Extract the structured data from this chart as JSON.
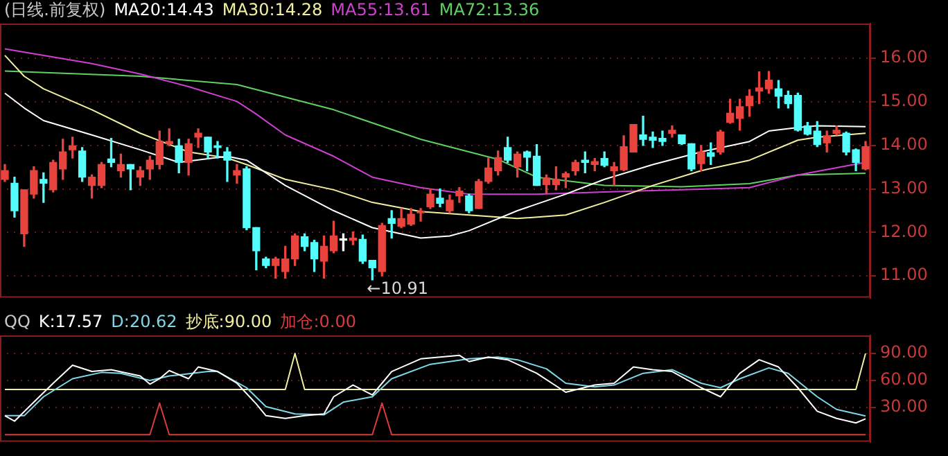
{
  "chart_data": [
    {
      "type": "candlestick",
      "title": "(日线.前复权)",
      "grid": "y",
      "tick_labels": "y",
      "categories": [
        null,
        null,
        null,
        null,
        null,
        null,
        null,
        null,
        null,
        null,
        null,
        null,
        null,
        null,
        null,
        null,
        null,
        null,
        null,
        null,
        null,
        null,
        null,
        null,
        null,
        null,
        null,
        null,
        null,
        null,
        null,
        null,
        null,
        null,
        null,
        null,
        null,
        null,
        null,
        null,
        null,
        null,
        null,
        null,
        null,
        null,
        null,
        null,
        null,
        null,
        null,
        null,
        null,
        null,
        null,
        null,
        null,
        null,
        null,
        null,
        null,
        null,
        null,
        null,
        null,
        null,
        null,
        null,
        null,
        null,
        null,
        null,
        null,
        null,
        null,
        null,
        null,
        null,
        null,
        null,
        null,
        null,
        null,
        null,
        null,
        null,
        null,
        null,
        null,
        null
      ],
      "ohlc": [
        [
          13.22,
          13.56,
          13.17,
          13.42
        ],
        [
          13.13,
          13.27,
          12.35,
          12.5
        ],
        [
          11.97,
          12.98,
          11.68,
          12.98
        ],
        [
          12.88,
          13.51,
          12.79,
          13.42
        ],
        [
          13.22,
          13.37,
          12.69,
          13.13
        ],
        [
          12.98,
          13.66,
          12.93,
          13.61
        ],
        [
          13.46,
          14.14,
          13.22,
          13.85
        ],
        [
          13.9,
          14.19,
          13.71,
          13.99
        ],
        [
          13.87,
          13.95,
          13.17,
          13.27
        ],
        [
          13.08,
          13.32,
          12.79,
          13.27
        ],
        [
          13.08,
          13.61,
          13.03,
          13.56
        ],
        [
          13.69,
          14.16,
          13.51,
          13.61
        ],
        [
          13.42,
          13.8,
          13.27,
          13.56
        ],
        [
          13.56,
          13.56,
          12.98,
          13.46
        ],
        [
          13.27,
          13.51,
          13.08,
          13.42
        ],
        [
          13.46,
          13.75,
          13.22,
          13.66
        ],
        [
          13.56,
          14.33,
          13.46,
          14.09
        ],
        [
          14.04,
          14.38,
          13.99,
          14.09
        ],
        [
          13.99,
          14.14,
          13.37,
          13.61
        ],
        [
          13.61,
          14.14,
          13.32,
          14.04
        ],
        [
          14.19,
          14.38,
          13.95,
          14.28
        ],
        [
          14.19,
          14.19,
          13.71,
          13.85
        ],
        [
          13.99,
          14.09,
          13.71,
          13.95
        ],
        [
          13.85,
          13.95,
          13.17,
          13.66
        ],
        [
          13.32,
          13.56,
          13.13,
          13.42
        ],
        [
          13.46,
          13.51,
          12.06,
          12.11
        ],
        [
          12.11,
          12.11,
          11.14,
          11.58
        ],
        [
          11.39,
          11.43,
          11.19,
          11.24
        ],
        [
          11.24,
          11.43,
          10.95,
          11.39
        ],
        [
          11.1,
          11.68,
          10.95,
          11.39
        ],
        [
          11.39,
          11.97,
          11.24,
          11.92
        ],
        [
          11.9,
          11.97,
          11.58,
          11.68
        ],
        [
          11.77,
          11.82,
          11.1,
          11.39
        ],
        [
          11.34,
          11.92,
          10.95,
          11.68
        ],
        [
          11.58,
          12.26,
          11.53,
          11.92
        ],
        [
          11.82,
          11.97,
          11.58,
          11.82
        ],
        [
          11.82,
          12.01,
          11.72,
          11.87
        ],
        [
          11.84,
          11.94,
          11.29,
          11.34
        ],
        [
          11.36,
          11.36,
          10.91,
          11.19
        ],
        [
          11.1,
          12.21,
          11.0,
          12.16
        ],
        [
          12.32,
          12.5,
          11.87,
          12.21
        ],
        [
          12.14,
          12.55,
          12.11,
          12.32
        ],
        [
          12.19,
          12.55,
          12.16,
          12.42
        ],
        [
          12.45,
          12.55,
          12.26,
          12.48
        ],
        [
          12.59,
          13.0,
          12.55,
          12.88
        ],
        [
          12.79,
          13.0,
          12.59,
          12.67
        ],
        [
          12.5,
          12.86,
          12.45,
          12.74
        ],
        [
          12.84,
          13.03,
          12.69,
          12.95
        ],
        [
          12.84,
          12.88,
          12.45,
          12.5
        ],
        [
          12.55,
          13.22,
          12.55,
          13.17
        ],
        [
          13.17,
          13.71,
          13.13,
          13.48
        ],
        [
          13.42,
          13.87,
          13.32,
          13.72
        ],
        [
          13.95,
          14.19,
          13.61,
          13.66
        ],
        [
          13.51,
          13.85,
          13.27,
          13.8
        ],
        [
          13.85,
          13.87,
          13.42,
          13.73
        ],
        [
          13.75,
          14.02,
          13.08,
          13.08
        ],
        [
          13.1,
          13.32,
          12.91,
          13.25
        ],
        [
          13.1,
          13.51,
          12.98,
          13.22
        ],
        [
          13.27,
          13.39,
          13.03,
          13.35
        ],
        [
          13.42,
          13.66,
          13.32,
          13.61
        ],
        [
          13.66,
          13.85,
          13.37,
          13.61
        ],
        [
          13.56,
          13.7,
          13.42,
          13.63
        ],
        [
          13.7,
          13.85,
          13.51,
          13.54
        ],
        [
          13.42,
          13.61,
          13.08,
          13.51
        ],
        [
          13.44,
          14.22,
          13.42,
          13.97
        ],
        [
          13.85,
          14.48,
          13.85,
          14.48
        ],
        [
          14.24,
          14.67,
          14.0,
          14.14
        ],
        [
          14.19,
          14.31,
          13.95,
          14.12
        ],
        [
          14.16,
          14.33,
          14.0,
          14.09
        ],
        [
          14.28,
          14.45,
          14.19,
          14.35
        ],
        [
          14.24,
          14.24,
          14.02,
          14.04
        ],
        [
          14.04,
          14.04,
          13.42,
          13.46
        ],
        [
          13.58,
          14.0,
          13.42,
          13.85
        ],
        [
          13.83,
          14.06,
          13.56,
          13.75
        ],
        [
          13.85,
          14.35,
          13.8,
          14.31
        ],
        [
          14.53,
          15.06,
          14.51,
          14.74
        ],
        [
          14.62,
          15.06,
          14.35,
          14.89
        ],
        [
          14.91,
          15.28,
          14.67,
          15.13
        ],
        [
          15.25,
          15.69,
          14.96,
          15.32
        ],
        [
          15.3,
          15.7,
          15.2,
          15.5
        ],
        [
          15.3,
          15.49,
          14.86,
          15.13
        ],
        [
          15.15,
          15.25,
          14.86,
          14.96
        ],
        [
          15.15,
          15.2,
          14.33,
          14.35
        ],
        [
          14.45,
          14.53,
          14.24,
          14.26
        ],
        [
          14.33,
          14.55,
          13.97,
          14.02
        ],
        [
          14.06,
          14.33,
          13.85,
          14.22
        ],
        [
          14.28,
          14.45,
          14.24,
          14.35
        ],
        [
          14.28,
          14.31,
          13.78,
          13.85
        ],
        [
          13.9,
          13.92,
          13.42,
          13.61
        ],
        [
          13.46,
          14.09,
          13.44,
          13.97
        ]
      ],
      "colors": [
        "#e8433c",
        "#54fcfc",
        "#e8433c",
        "#e8433c",
        "#54fcfc",
        "#e8433c",
        "#e8433c",
        "#e8433c",
        "#54fcfc",
        "#e8433c",
        "#e8433c",
        "#54fcfc",
        "#e8433c",
        "#54fcfc",
        "#e8433c",
        "#e8433c",
        "#e8433c",
        "#e8433c",
        "#54fcfc",
        "#e8433c",
        "#e8433c",
        "#54fcfc",
        "#54fcfc",
        "#54fcfc",
        "#e8433c",
        "#54fcfc",
        "#54fcfc",
        "#54fcfc",
        "#e8433c",
        "#e8433c",
        "#e8433c",
        "#54fcfc",
        "#54fcfc",
        "#e8433c",
        "#e8433c",
        "#ffffff",
        "#e8433c",
        "#54fcfc",
        "#54fcfc",
        "#e8433c",
        "#54fcfc",
        "#e8433c",
        "#e8433c",
        "#e8433c",
        "#e8433c",
        "#54fcfc",
        "#e8433c",
        "#e8433c",
        "#54fcfc",
        "#e8433c",
        "#e8433c",
        "#e8433c",
        "#54fcfc",
        "#e8433c",
        "#54fcfc",
        "#54fcfc",
        "#e8433c",
        "#e8433c",
        "#e8433c",
        "#e8433c",
        "#54fcfc",
        "#e8433c",
        "#54fcfc",
        "#e8433c",
        "#e8433c",
        "#e8433c",
        "#54fcfc",
        "#54fcfc",
        "#54fcfc",
        "#e8433c",
        "#54fcfc",
        "#54fcfc",
        "#e8433c",
        "#54fcfc",
        "#e8433c",
        "#e8433c",
        "#e8433c",
        "#e8433c",
        "#e8433c",
        "#e8433c",
        "#54fcfc",
        "#54fcfc",
        "#54fcfc",
        "#54fcfc",
        "#54fcfc",
        "#e8433c",
        "#e8433c",
        "#54fcfc",
        "#54fcfc",
        "#e8433c"
      ],
      "series": [
        {
          "type": "line",
          "name": "MA20:14.43",
          "color": "#ffffff",
          "values": [
            15.2,
            null,
            14.86,
            null,
            14.57,
            null,
            null,
            null,
            null,
            14.24,
            null,
            null,
            null,
            null,
            13.9,
            null,
            null,
            null,
            13.61,
            null,
            null,
            null,
            null,
            13.75,
            null,
            13.66,
            null,
            null,
            null,
            13.08,
            null,
            null,
            null,
            null,
            12.5,
            null,
            null,
            null,
            12.11,
            null,
            null,
            null,
            null,
            11.87,
            null,
            null,
            11.92,
            null,
            12.04,
            null,
            null,
            null,
            null,
            12.5,
            null,
            null,
            null,
            null,
            12.88,
            null,
            null,
            null,
            13.22,
            null,
            null,
            null,
            null,
            13.56,
            null,
            null,
            null,
            null,
            13.85,
            null,
            null,
            null,
            null,
            14.09,
            null,
            14.33,
            null,
            null,
            14.41,
            null,
            14.45,
            null,
            null,
            null,
            null,
            14.43
          ]
        },
        {
          "type": "line",
          "name": "MA30:14.28",
          "color": "#f0f0a0",
          "values": [
            16.07,
            null,
            15.59,
            null,
            15.3,
            null,
            null,
            null,
            null,
            14.82,
            null,
            null,
            null,
            null,
            14.28,
            null,
            null,
            null,
            null,
            13.85,
            null,
            null,
            null,
            13.71,
            null,
            13.56,
            null,
            null,
            null,
            13.22,
            null,
            null,
            null,
            null,
            12.98,
            null,
            null,
            null,
            12.69,
            null,
            null,
            null,
            null,
            12.48,
            null,
            null,
            null,
            null,
            12.4,
            null,
            null,
            null,
            null,
            12.32,
            null,
            null,
            null,
            null,
            12.4,
            null,
            null,
            null,
            12.69,
            null,
            null,
            null,
            null,
            13.08,
            null,
            null,
            null,
            null,
            13.42,
            null,
            null,
            null,
            null,
            13.66,
            null,
            null,
            null,
            null,
            14.12,
            null,
            14.19,
            null,
            null,
            null,
            null,
            14.28
          ]
        },
        {
          "type": "line",
          "name": "MA55:13.61",
          "color": "#d040d0",
          "values": [
            16.22,
            null,
            null,
            null,
            null,
            null,
            null,
            null,
            null,
            15.88,
            null,
            null,
            null,
            null,
            15.64,
            null,
            null,
            null,
            null,
            15.35,
            null,
            null,
            null,
            null,
            15.01,
            null,
            14.72,
            null,
            null,
            14.24,
            null,
            null,
            null,
            null,
            13.75,
            null,
            null,
            null,
            13.27,
            null,
            null,
            null,
            null,
            13.03,
            null,
            null,
            null,
            null,
            12.88,
            null,
            null,
            null,
            null,
            null,
            null,
            12.88,
            null,
            null,
            null,
            null,
            null,
            null,
            12.93,
            null,
            null,
            null,
            null,
            null,
            null,
            null,
            12.98,
            null,
            null,
            null,
            null,
            null,
            null,
            13.03,
            null,
            null,
            null,
            null,
            13.32,
            null,
            null,
            null,
            null,
            null,
            null,
            13.61
          ]
        },
        {
          "type": "line",
          "name": "MA72:13.36",
          "color": "#60d060",
          "values": [
            15.71,
            null,
            null,
            null,
            null,
            null,
            null,
            null,
            null,
            null,
            null,
            null,
            null,
            null,
            15.59,
            null,
            null,
            null,
            null,
            null,
            null,
            null,
            null,
            null,
            15.4,
            null,
            null,
            null,
            null,
            null,
            null,
            null,
            null,
            null,
            14.82,
            null,
            null,
            null,
            null,
            null,
            null,
            null,
            null,
            14.14,
            null,
            null,
            null,
            null,
            null,
            null,
            null,
            13.68,
            null,
            null,
            null,
            13.27,
            null,
            null,
            null,
            null,
            null,
            null,
            13.08,
            null,
            null,
            null,
            null,
            null,
            null,
            null,
            13.05,
            null,
            null,
            null,
            null,
            null,
            null,
            13.12,
            null,
            null,
            null,
            null,
            13.32,
            null,
            null,
            null,
            null,
            null,
            null,
            13.36
          ]
        }
      ],
      "ylim": [
        10.5,
        16.8
      ],
      "yticks": [
        {
          "value": 11,
          "label": "11.00"
        },
        {
          "value": 12,
          "label": "12.00"
        },
        {
          "value": 13,
          "label": "13.00"
        },
        {
          "value": 14,
          "label": "14.00"
        },
        {
          "value": 15,
          "label": "15.00"
        },
        {
          "value": 16,
          "label": "16.00"
        }
      ],
      "annotations": [
        "←10.91"
      ]
    },
    {
      "type": "line",
      "title": "QQ",
      "grid": "y",
      "tick_labels": "y",
      "categories": [
        null,
        null,
        null,
        null,
        null,
        null,
        null,
        null,
        null,
        null,
        null,
        null,
        null,
        null,
        null,
        null,
        null,
        null,
        null,
        null,
        null,
        null,
        null,
        null,
        null,
        null,
        null,
        null,
        null,
        null,
        null,
        null,
        null,
        null,
        null,
        null,
        null,
        null,
        null,
        null,
        null,
        null,
        null,
        null,
        null,
        null,
        null,
        null,
        null,
        null,
        null,
        null,
        null,
        null,
        null,
        null,
        null,
        null,
        null,
        null,
        null,
        null,
        null,
        null,
        null,
        null,
        null,
        null,
        null,
        null,
        null,
        null,
        null,
        null,
        null,
        null,
        null,
        null,
        null,
        null,
        null,
        null,
        null,
        null,
        null,
        null,
        null,
        null,
        null,
        null
      ],
      "series": [
        {
          "name": "K:17.57",
          "color": "#ffffff",
          "values": [
            21,
            15,
            null,
            36,
            null,
            57,
            null,
            77,
            null,
            70,
            null,
            72,
            null,
            null,
            65,
            56,
            62,
            71,
            null,
            62,
            75,
            null,
            70,
            null,
            57,
            null,
            34,
            21,
            null,
            18,
            null,
            21,
            null,
            23,
            42,
            null,
            55,
            null,
            44,
            57,
            70,
            null,
            null,
            84,
            null,
            86,
            null,
            88,
            81,
            null,
            86,
            null,
            83,
            null,
            null,
            68,
            null,
            null,
            47,
            null,
            null,
            55,
            null,
            57,
            null,
            75,
            null,
            72,
            null,
            70,
            null,
            null,
            52,
            null,
            42,
            null,
            68,
            null,
            83,
            null,
            75,
            null,
            52,
            null,
            26,
            null,
            18,
            null,
            13,
            17.57
          ]
        },
        {
          "name": "D:20.62",
          "color": "#7fd8e8",
          "values": [
            21,
            null,
            21,
            null,
            42,
            null,
            null,
            62,
            null,
            null,
            69,
            null,
            68,
            null,
            null,
            60,
            null,
            65,
            null,
            null,
            null,
            70,
            70,
            null,
            null,
            52,
            null,
            31,
            null,
            null,
            23,
            null,
            null,
            22,
            null,
            36,
            null,
            null,
            42,
            null,
            62,
            null,
            null,
            null,
            78,
            null,
            null,
            null,
            84,
            null,
            null,
            86,
            null,
            83,
            null,
            null,
            73,
            null,
            57,
            null,
            null,
            53,
            null,
            55,
            null,
            null,
            68,
            null,
            null,
            72,
            null,
            null,
            57,
            null,
            52,
            null,
            62,
            null,
            null,
            74,
            null,
            68,
            null,
            null,
            42,
            null,
            28,
            null,
            null,
            20.62
          ]
        },
        {
          "name": "抄底:90.00",
          "color": "#f0f0a0",
          "values": [
            50,
            50,
            50,
            50,
            50,
            50,
            50,
            50,
            50,
            50,
            50,
            50,
            50,
            50,
            50,
            50,
            50,
            50,
            50,
            50,
            50,
            50,
            50,
            50,
            50,
            50,
            50,
            50,
            50,
            50,
            90,
            50,
            50,
            50,
            50,
            50,
            50,
            50,
            50,
            50,
            50,
            50,
            50,
            50,
            50,
            50,
            50,
            50,
            50,
            50,
            50,
            50,
            50,
            50,
            50,
            50,
            50,
            50,
            50,
            50,
            50,
            50,
            50,
            50,
            50,
            50,
            50,
            50,
            50,
            50,
            50,
            50,
            50,
            50,
            50,
            50,
            50,
            50,
            50,
            50,
            50,
            50,
            50,
            50,
            50,
            50,
            50,
            50,
            50,
            90
          ]
        },
        {
          "name": "加仓:0.00",
          "color": "#d83c3c",
          "values": [
            0,
            0,
            0,
            0,
            0,
            0,
            0,
            0,
            0,
            0,
            0,
            0,
            0,
            0,
            0,
            0,
            35,
            0,
            0,
            0,
            0,
            0,
            0,
            0,
            0,
            0,
            0,
            0,
            0,
            0,
            0,
            0,
            0,
            0,
            0,
            0,
            0,
            0,
            0,
            35,
            0,
            0,
            0,
            0,
            0,
            0,
            0,
            0,
            0,
            0,
            0,
            0,
            0,
            0,
            0,
            0,
            0,
            0,
            0,
            0,
            0,
            0,
            0,
            0,
            0,
            0,
            0,
            0,
            0,
            0,
            0,
            0,
            0,
            0,
            0,
            0,
            0,
            0,
            0,
            0,
            0,
            0,
            0,
            0,
            0,
            0,
            0,
            0,
            0,
            0
          ]
        }
      ],
      "ylim": [
        -8,
        110
      ],
      "yticks": [
        {
          "value": 30,
          "label": "30.00"
        },
        {
          "value": 60,
          "label": "60.00"
        },
        {
          "value": 90,
          "label": "90.00"
        }
      ]
    }
  ]
}
